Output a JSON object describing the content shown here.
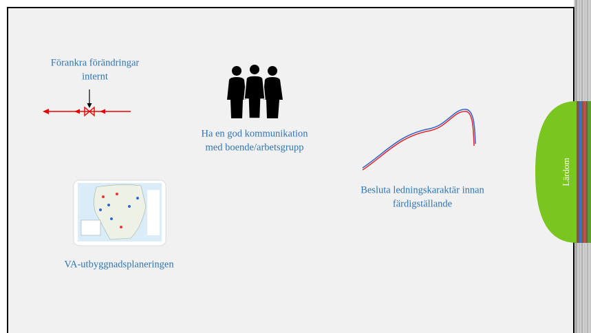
{
  "slide": {
    "items": [
      {
        "lines": [
          "Förankra förändringar",
          "internt"
        ]
      },
      {
        "lines": [
          "Ha en god kommunikation",
          "med boende/arbetsgrupp"
        ]
      },
      {
        "lines": [
          "Besluta ledningskaraktär innan",
          "färdigställande"
        ]
      },
      {
        "lines": [
          "VA-utbyggnadsplaneringen"
        ]
      }
    ],
    "tab": {
      "label": "Lärdom"
    }
  }
}
